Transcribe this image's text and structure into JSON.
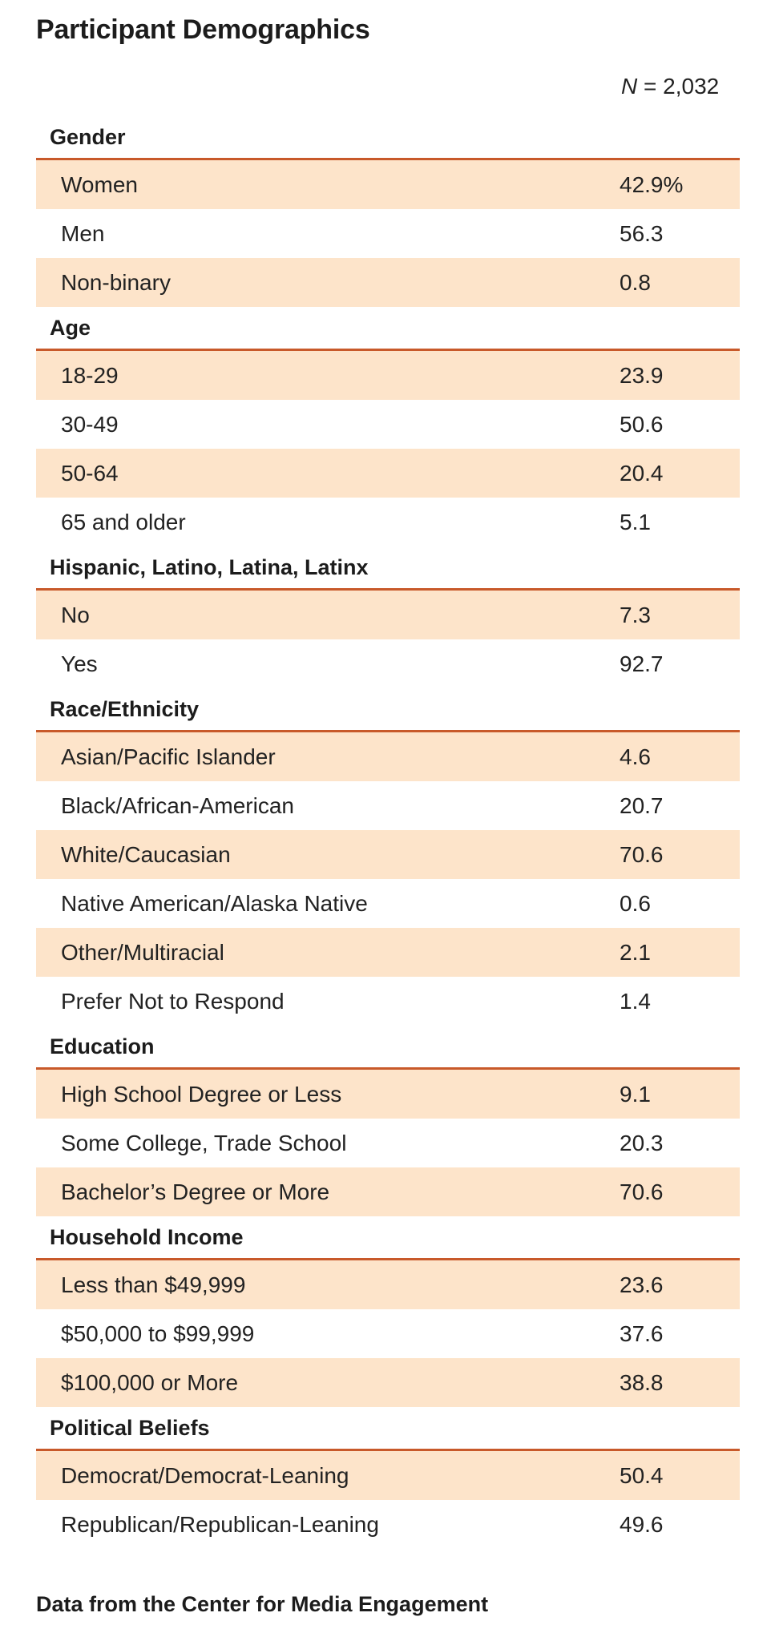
{
  "title": "Participant Demographics",
  "n_label": {
    "italic": "N",
    "rest": " = 2,032"
  },
  "colors": {
    "accent_line": "#c8592a",
    "row_shade": "#fde4ca"
  },
  "footnote": "Data from the Center for Media Engagement",
  "chart_data": {
    "type": "table",
    "title": "Participant Demographics",
    "n": "2,032",
    "sections": [
      {
        "header": "Gender",
        "rows": [
          {
            "label": "Women",
            "value": "42.9%"
          },
          {
            "label": "Men",
            "value": "56.3"
          },
          {
            "label": "Non-binary",
            "value": "0.8"
          }
        ]
      },
      {
        "header": "Age",
        "rows": [
          {
            "label": "18-29",
            "value": "23.9"
          },
          {
            "label": "30-49",
            "value": "50.6"
          },
          {
            "label": "50-64",
            "value": "20.4"
          },
          {
            "label": "65 and older",
            "value": "5.1"
          }
        ]
      },
      {
        "header": "Hispanic, Latino, Latina, Latinx",
        "rows": [
          {
            "label": "No",
            "value": "7.3"
          },
          {
            "label": "Yes",
            "value": "92.7"
          }
        ]
      },
      {
        "header": "Race/Ethnicity",
        "rows": [
          {
            "label": "Asian/Pacific Islander",
            "value": "4.6"
          },
          {
            "label": "Black/African-American",
            "value": "20.7"
          },
          {
            "label": "White/Caucasian",
            "value": "70.6"
          },
          {
            "label": "Native American/Alaska Native",
            "value": "0.6"
          },
          {
            "label": "Other/Multiracial",
            "value": "2.1"
          },
          {
            "label": "Prefer Not to Respond",
            "value": "1.4"
          }
        ]
      },
      {
        "header": "Education",
        "rows": [
          {
            "label": "High School Degree or Less",
            "value": "9.1"
          },
          {
            "label": "Some College, Trade School",
            "value": "20.3"
          },
          {
            "label": "Bachelor’s Degree or More",
            "value": "70.6"
          }
        ]
      },
      {
        "header": "Household Income",
        "rows": [
          {
            "label": "Less than $49,999",
            "value": "23.6"
          },
          {
            "label": "$50,000 to $99,999",
            "value": "37.6"
          },
          {
            "label": "$100,000 or More",
            "value": "38.8"
          }
        ]
      },
      {
        "header": "Political Beliefs",
        "rows": [
          {
            "label": "Democrat/Democrat-Leaning",
            "value": "50.4"
          },
          {
            "label": "Republican/Republican-Leaning",
            "value": "49.6"
          }
        ]
      }
    ]
  }
}
